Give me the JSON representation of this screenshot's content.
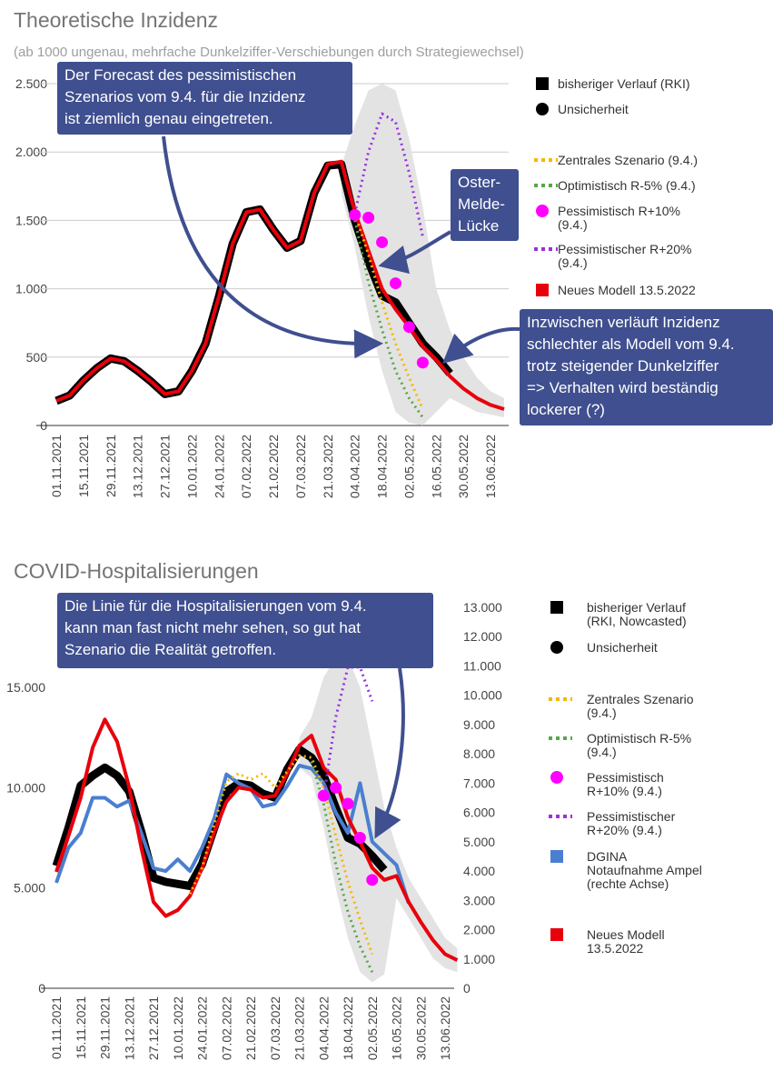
{
  "chart_data": [
    {
      "type": "line",
      "title": "Theoretische Inzidenz",
      "subtitle": "(ab 1000 ungenau, mehrfache Dunkelziffer-Verschiebungen durch Strategiewechsel)",
      "categories": [
        "01.11.2021",
        null,
        "15.11.2021",
        null,
        "29.11.2021",
        null,
        "13.12.2021",
        null,
        "27.12.2021",
        null,
        "10.01.2022",
        null,
        "24.01.2022",
        null,
        "07.02.2022",
        null,
        "21.02.2022",
        null,
        "07.03.2022",
        null,
        "21.03.2022",
        null,
        "04.04.2022",
        null,
        "18.04.2022",
        null,
        "02.05.2022",
        null,
        "16.05.2022",
        null,
        "30.05.2022",
        null,
        "13.06.2022",
        null
      ],
      "ylim": [
        0,
        2500
      ],
      "yticks": [
        0,
        500,
        {
          "value": 1000,
          "label": "1.000"
        },
        {
          "value": 1500,
          "label": "1.500"
        },
        {
          "value": 2000,
          "label": "2.000"
        },
        {
          "value": 2500,
          "label": "2.500"
        }
      ],
      "grid": true,
      "series": [
        {
          "name": "bisheriger Verlauf (RKI)",
          "color": "#000000",
          "style": "thick",
          "values": [
            180,
            220,
            330,
            420,
            490,
            470,
            400,
            320,
            230,
            250,
            400,
            600,
            950,
            1330,
            1560,
            1580,
            1430,
            1300,
            1350,
            1700,
            1900,
            1910,
            1500,
            1200,
            950,
            900,
            750,
            600,
            500,
            380,
            null,
            null,
            null,
            null
          ]
        },
        {
          "name": "Unsicherheit",
          "color": "#000000",
          "fill": "#e3e3e3",
          "style": "band",
          "upper": [
            null,
            null,
            null,
            null,
            null,
            null,
            null,
            null,
            null,
            null,
            null,
            null,
            null,
            null,
            null,
            null,
            null,
            null,
            null,
            null,
            null,
            1900,
            2200,
            2450,
            2500,
            2450,
            2100,
            1600,
            1000,
            700,
            500,
            350,
            250,
            200
          ],
          "lower": [
            null,
            null,
            null,
            null,
            null,
            null,
            null,
            null,
            null,
            null,
            null,
            null,
            null,
            null,
            null,
            null,
            null,
            null,
            null,
            null,
            null,
            1700,
            1300,
            800,
            400,
            100,
            20,
            0,
            100,
            200,
            150,
            100,
            80,
            60
          ]
        },
        {
          "name": "Zentrales Szenario (9.4.)",
          "color": "#f5b800",
          "style": "dotted",
          "values": [
            null,
            null,
            null,
            null,
            null,
            null,
            null,
            null,
            null,
            null,
            null,
            null,
            null,
            null,
            null,
            null,
            null,
            null,
            null,
            null,
            null,
            null,
            1550,
            1250,
            900,
            600,
            350,
            120,
            null,
            null,
            null,
            null,
            null,
            null
          ]
        },
        {
          "name": "Optimistisch R-5% (9.4.)",
          "color": "#5aa64a",
          "style": "dotted",
          "values": [
            null,
            null,
            null,
            null,
            null,
            null,
            null,
            null,
            null,
            null,
            null,
            null,
            null,
            null,
            null,
            null,
            null,
            null,
            null,
            null,
            null,
            null,
            1500,
            1050,
            700,
            400,
            200,
            60,
            null,
            null,
            null,
            null,
            null,
            null
          ]
        },
        {
          "name": "Pessimistisch R+10%\n(9.4.)",
          "color": "#ff00ff",
          "style": "points",
          "values": [
            null,
            null,
            null,
            null,
            null,
            null,
            null,
            null,
            null,
            null,
            null,
            null,
            null,
            null,
            null,
            null,
            null,
            null,
            null,
            null,
            null,
            null,
            1540,
            1520,
            1340,
            1040,
            720,
            460,
            null,
            null,
            null,
            null,
            null,
            null
          ]
        },
        {
          "name": "Pessimistischer R+20%\n(9.4.)",
          "color": "#9b30e0",
          "style": "dotted",
          "values": [
            null,
            null,
            null,
            null,
            null,
            null,
            null,
            null,
            null,
            null,
            null,
            null,
            null,
            null,
            null,
            null,
            null,
            null,
            null,
            null,
            null,
            null,
            1550,
            2000,
            2280,
            2220,
            1850,
            1380,
            null,
            null,
            null,
            null,
            null,
            null
          ]
        },
        {
          "name": "Neues Modell 13.5.2022",
          "color": "#e8000b",
          "style": "line",
          "values": [
            180,
            220,
            330,
            420,
            490,
            470,
            400,
            320,
            230,
            250,
            400,
            600,
            950,
            1330,
            1560,
            1580,
            1430,
            1300,
            1350,
            1700,
            1910,
            1930,
            1560,
            1280,
            1000,
            850,
            720,
            580,
            480,
            360,
            270,
            200,
            150,
            120
          ]
        }
      ],
      "annotations": [
        {
          "text": "Der Forecast des pessimistischen\nSzenarios vom 9.4. für die Inzidenz\nist ziemlich genau eingetreten."
        },
        {
          "text": "Oster-\nMelde-\nLücke"
        },
        {
          "text": "Inzwischen verläuft Inzidenz\nschlechter als Modell vom 9.4.\ntrotz steigender Dunkelziffer\n=> Verhalten wird beständig\nlockerer (?)"
        }
      ]
    },
    {
      "type": "line",
      "title": "COVID-Hospitalisierungen",
      "categories": [
        "01.11.2021",
        null,
        "15.11.2021",
        null,
        "29.11.2021",
        null,
        "13.12.2021",
        null,
        "27.12.2021",
        null,
        "10.01.2022",
        null,
        "24.01.2022",
        null,
        "07.02.2022",
        null,
        "21.02.2022",
        null,
        "07.03.2022",
        null,
        "21.03.2022",
        null,
        "04.04.2022",
        null,
        "18.04.2022",
        null,
        "02.05.2022",
        null,
        "16.05.2022",
        null,
        "30.05.2022",
        null,
        "13.06.2022",
        null
      ],
      "ylim": [
        0,
        15000
      ],
      "yticks": [
        0,
        {
          "value": 5000,
          "label": "5.000"
        },
        {
          "value": 10000,
          "label": "10.000"
        },
        {
          "value": 15000,
          "label": "15.000"
        }
      ],
      "y2lim": [
        0,
        13000
      ],
      "y2ticks": [
        0,
        {
          "value": 1000,
          "label": "1.000"
        },
        {
          "value": 2000,
          "label": "2.000"
        },
        {
          "value": 3000,
          "label": "3.000"
        },
        {
          "value": 4000,
          "label": "4.000"
        },
        {
          "value": 5000,
          "label": "5.000"
        },
        {
          "value": 6000,
          "label": "6.000"
        },
        {
          "value": 7000,
          "label": "7.000"
        },
        {
          "value": 8000,
          "label": "8.000"
        },
        {
          "value": 9000,
          "label": "9.000"
        },
        {
          "value": 10000,
          "label": "10.000"
        },
        {
          "value": 11000,
          "label": "11.000"
        },
        {
          "value": 12000,
          "label": "12.000"
        },
        {
          "value": 13000,
          "label": "13.000"
        }
      ],
      "grid": false,
      "series": [
        {
          "name": "bisheriger Verlauf\n(RKI, Nowcasted)",
          "color": "#000000",
          "style": "thick",
          "values": [
            6100,
            8000,
            10100,
            10600,
            11000,
            10600,
            9800,
            7800,
            5500,
            5300,
            5200,
            5100,
            6200,
            8000,
            9800,
            10200,
            10100,
            9700,
            9500,
            10900,
            11900,
            11500,
            10600,
            9000,
            7500,
            7200,
            6600,
            5900,
            null,
            null,
            null,
            null,
            null,
            null
          ]
        },
        {
          "name": "Unsicherheit",
          "color": "#000000",
          "fill": "#e3e3e3",
          "style": "band",
          "upper": [
            null,
            null,
            null,
            null,
            null,
            null,
            null,
            null,
            null,
            null,
            null,
            null,
            null,
            null,
            null,
            null,
            null,
            null,
            null,
            null,
            12500,
            13500,
            15500,
            16500,
            16500,
            15000,
            12000,
            9000,
            7000,
            5500,
            4500,
            3500,
            2500,
            2000
          ],
          "lower": [
            null,
            null,
            null,
            null,
            null,
            null,
            null,
            null,
            null,
            null,
            null,
            null,
            null,
            null,
            null,
            null,
            null,
            null,
            null,
            null,
            11000,
            10500,
            8000,
            5000,
            2500,
            800,
            300,
            700,
            4500,
            3500,
            2500,
            1500,
            1000,
            800
          ]
        },
        {
          "name": "Zentrales Szenario\n(9.4.)",
          "color": "#f5b800",
          "style": "dotted",
          "values": [
            null,
            null,
            null,
            null,
            null,
            null,
            null,
            null,
            null,
            null,
            null,
            4700,
            6000,
            8200,
            10300,
            10700,
            10400,
            10700,
            10000,
            10800,
            11600,
            11500,
            10000,
            7600,
            5300,
            3400,
            1700,
            null,
            null,
            null,
            null,
            null,
            null,
            null
          ]
        },
        {
          "name": "Optimistisch R-5%\n(9.4.)",
          "color": "#5aa64a",
          "style": "dotted",
          "values": [
            null,
            null,
            null,
            null,
            null,
            null,
            null,
            null,
            null,
            null,
            null,
            null,
            null,
            null,
            null,
            null,
            null,
            null,
            null,
            null,
            null,
            11300,
            9200,
            6200,
            3800,
            2100,
            800,
            null,
            null,
            null,
            null,
            null,
            null,
            null
          ]
        },
        {
          "name": "Pessimistisch\nR+10% (9.4.)",
          "color": "#ff00ff",
          "style": "points",
          "values": [
            null,
            null,
            null,
            null,
            null,
            null,
            null,
            null,
            null,
            null,
            null,
            null,
            null,
            null,
            null,
            null,
            null,
            null,
            null,
            null,
            null,
            null,
            9600,
            10000,
            9200,
            7500,
            5400,
            null,
            null,
            null,
            null,
            null,
            null,
            null
          ]
        },
        {
          "name": "Pessimistischer\nR+20% (9.4.)",
          "color": "#9b30e0",
          "style": "dotted",
          "values": [
            null,
            null,
            null,
            null,
            null,
            null,
            null,
            null,
            null,
            null,
            null,
            null,
            null,
            null,
            null,
            null,
            null,
            null,
            null,
            null,
            null,
            null,
            9500,
            13500,
            16000,
            16000,
            14300,
            null,
            null,
            null,
            null,
            null,
            null,
            null
          ]
        },
        {
          "name": "DGINA\nNotaufnahme Ampel\n(rechte Achse)",
          "color": "#4a7fd0",
          "style": "line",
          "axis": "y2",
          "values": [
            3600,
            4800,
            5300,
            6500,
            6500,
            6200,
            6400,
            5300,
            4100,
            4000,
            4400,
            4000,
            4800,
            5800,
            7300,
            7000,
            6800,
            6200,
            6300,
            6900,
            7600,
            7500,
            7000,
            6000,
            5300,
            7000,
            5000,
            4600,
            4200,
            2900,
            null,
            null,
            null,
            null
          ]
        },
        {
          "name": "Neues Modell\n13.5.2022",
          "color": "#e8000b",
          "style": "line",
          "values": [
            5800,
            7600,
            9500,
            12000,
            13400,
            12300,
            10000,
            7000,
            4300,
            3600,
            3900,
            4600,
            6000,
            7800,
            9300,
            10000,
            9900,
            9500,
            9600,
            10700,
            12100,
            12600,
            11000,
            10400,
            8500,
            7300,
            6000,
            5400,
            5600,
            4300,
            3300,
            2400,
            1700,
            1400
          ]
        }
      ],
      "annotations": [
        {
          "text": "Die Linie für die Hospitalisierungen vom 9.4.\nkann man fast nicht mehr sehen, so gut hat\nSzenario die Realität getroffen."
        }
      ]
    }
  ]
}
